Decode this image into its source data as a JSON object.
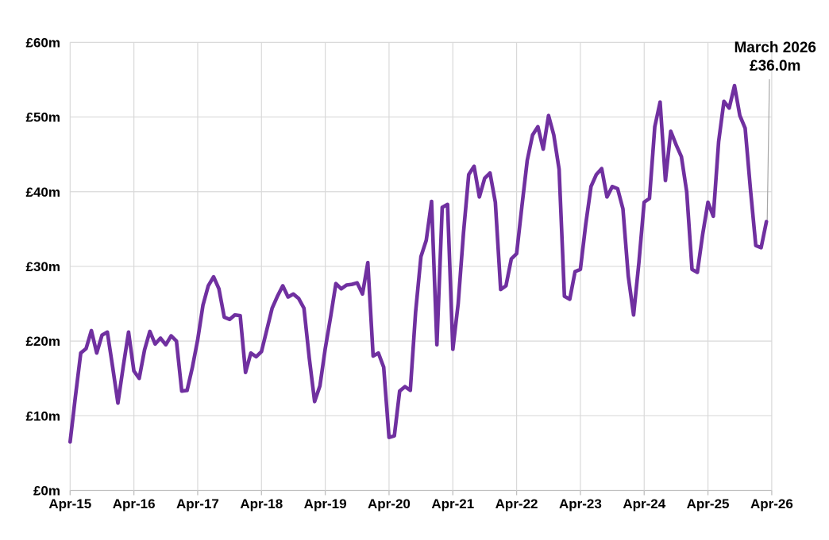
{
  "chart_data": {
    "type": "line",
    "title": "",
    "x_tick_labels": [
      "Apr-15",
      "Apr-16",
      "Apr-17",
      "Apr-18",
      "Apr-19",
      "Apr-20",
      "Apr-21",
      "Apr-22",
      "Apr-23",
      "Apr-24",
      "Apr-25",
      "Apr-26"
    ],
    "y_tick_labels": [
      "£0m",
      "£10m",
      "£20m",
      "£30m",
      "£40m",
      "£50m",
      "£60m"
    ],
    "ylim": [
      0,
      60
    ],
    "y_tick_step": 10,
    "grid": true,
    "legend": "none",
    "line_color": "#7030A0",
    "grid_color": "#D9D9D9",
    "axis_color": "#BFBFBF",
    "leader_line_color": "#A6A6A6",
    "series": [
      {
        "name": "monthly-value",
        "start_month": "Apr-15",
        "end_month": "Mar-26",
        "values": [
          6.5,
          12.6,
          18.4,
          19.0,
          21.4,
          18.4,
          20.8,
          21.2,
          16.5,
          11.7,
          16.6,
          21.2,
          16.0,
          15.0,
          18.8,
          21.3,
          19.6,
          20.4,
          19.5,
          20.7,
          20.0,
          13.3,
          13.4,
          16.5,
          20.2,
          24.8,
          27.4,
          28.6,
          27.0,
          23.2,
          22.9,
          23.5,
          23.4,
          15.8,
          18.4,
          17.9,
          18.6,
          21.5,
          24.4,
          26.0,
          27.4,
          25.9,
          26.3,
          25.7,
          24.4,
          17.7,
          11.9,
          14.0,
          19.0,
          23.2,
          27.7,
          27.0,
          27.5,
          27.6,
          27.8,
          26.3,
          30.5,
          18.0,
          18.4,
          16.5,
          7.1,
          7.3,
          13.3,
          13.9,
          13.4,
          23.9,
          31.3,
          33.5,
          38.7,
          19.5,
          37.9,
          38.3,
          18.9,
          25.0,
          34.5,
          42.3,
          43.4,
          39.3,
          41.8,
          42.5,
          38.6,
          26.9,
          27.4,
          31.0,
          31.7,
          38.1,
          44.2,
          47.6,
          48.7,
          45.7,
          50.2,
          47.6,
          43.0,
          26.0,
          25.6,
          29.3,
          29.6,
          35.6,
          40.7,
          42.3,
          43.1,
          39.3,
          40.7,
          40.4,
          37.7,
          28.7,
          23.5,
          30.5,
          38.6,
          39.1,
          48.7,
          52.0,
          41.5,
          48.1,
          46.3,
          44.7,
          40.0,
          29.6,
          29.2,
          34.3,
          38.6,
          36.7,
          46.7,
          52.1,
          51.2,
          54.2,
          50.2,
          48.5,
          40.3,
          32.8,
          32.5,
          36.0
        ]
      }
    ],
    "annotation": {
      "line1": "March 2026",
      "line2": "£36.0m",
      "points_to_value": 36.0
    }
  },
  "annotation": {
    "line1": "March 2026",
    "line2": "£36.0m"
  }
}
